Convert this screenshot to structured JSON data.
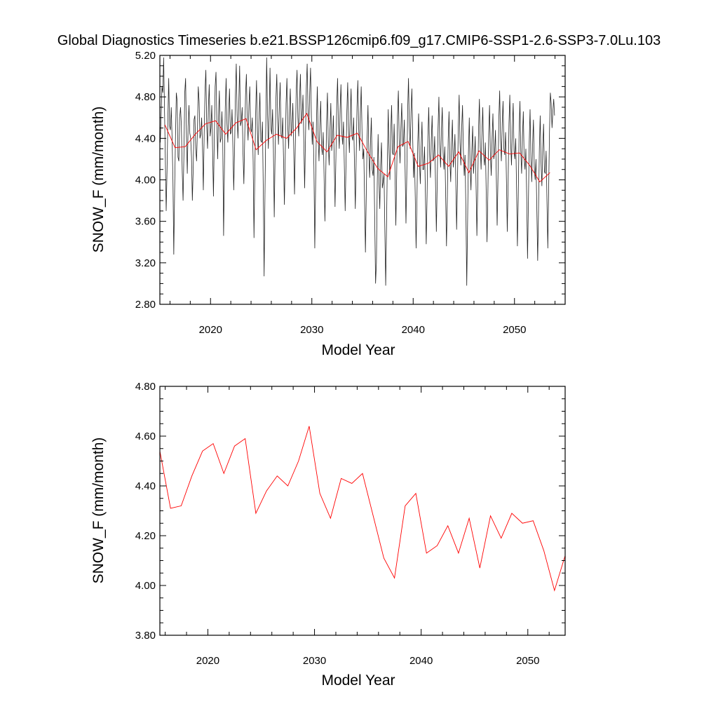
{
  "title": "Global Diagnostics Timeseries b.e21.BSSP126cmip6.f09_g17.CMIP6-SSP1-2.6-SSP3-7.0Lu.103",
  "chart_data": [
    {
      "type": "line",
      "xlabel": "Model Year",
      "ylabel": "SNOW_F (mm/month)",
      "xlim": [
        2015,
        2055
      ],
      "ylim": [
        2.8,
        5.2
      ],
      "x_ticks": [
        "2020",
        "2030",
        "2040",
        "2050"
      ],
      "y_ticks": [
        "2.80",
        "3.20",
        "3.60",
        "4.00",
        "4.40",
        "4.80",
        "5.20"
      ],
      "series": [
        {
          "color": "#222222",
          "x_start": 2015.04,
          "x_step": 0.08333,
          "values": [
            4.36,
            4.62,
            4.9,
            4.84,
            5.18,
            4.68,
            4.2,
            3.7,
            4.08,
            4.58,
            4.98,
            4.52,
            4.48,
            4.7,
            4.4,
            4.0,
            3.28,
            3.9,
            4.4,
            4.84,
            4.76,
            4.22,
            4.18,
            4.6,
            4.7,
            4.52,
            4.08,
            3.8,
            4.24,
            4.84,
            4.98,
            4.42,
            4.06,
            4.52,
            4.72,
            4.45,
            4.4,
            4.22,
            3.8,
            4.1,
            4.58,
            4.62,
            4.3,
            4.18,
            4.48,
            4.9,
            4.76,
            4.4,
            4.44,
            4.6,
            4.32,
            3.9,
            4.44,
            4.86,
            5.06,
            4.52,
            4.3,
            4.7,
            4.92,
            4.42,
            4.5,
            4.72,
            4.28,
            3.84,
            4.42,
            4.9,
            5.04,
            4.56,
            4.2,
            4.62,
            4.86,
            4.36,
            4.4,
            4.66,
            4.38,
            3.46,
            4.12,
            4.7,
            4.98,
            4.54,
            4.36,
            4.64,
            4.88,
            4.44,
            4.46,
            4.68,
            4.32,
            3.9,
            4.28,
            4.82,
            5.12,
            4.62,
            4.4,
            4.74,
            5.1,
            4.52,
            4.56,
            4.7,
            4.26,
            3.96,
            4.4,
            4.82,
            5.02,
            4.56,
            4.38,
            4.72,
            4.9,
            4.5,
            4.46,
            4.6,
            4.18,
            3.44,
            4.08,
            4.66,
            4.96,
            4.48,
            4.24,
            4.62,
            4.84,
            4.38,
            4.36,
            4.56,
            3.9,
            3.07,
            3.86,
            4.52,
            5.18,
            4.66,
            4.3,
            4.64,
            5.08,
            4.5,
            4.44,
            4.68,
            4.3,
            3.64,
            4.24,
            4.78,
            5.02,
            4.6,
            4.34,
            4.7,
            4.94,
            4.44,
            4.4,
            4.6,
            4.2,
            3.76,
            4.22,
            4.74,
            4.98,
            4.52,
            4.3,
            4.66,
            4.88,
            4.42,
            4.5,
            4.74,
            4.34,
            3.86,
            4.36,
            4.86,
            5.06,
            4.6,
            4.42,
            4.78,
            5.02,
            4.54,
            4.6,
            4.82,
            4.38,
            3.92,
            4.4,
            4.9,
            5.12,
            4.64,
            4.48,
            4.84,
            5.08,
            4.6,
            4.34,
            4.56,
            4.12,
            3.34,
            3.96,
            4.56,
            4.9,
            4.42,
            4.18,
            4.52,
            4.76,
            4.32,
            4.24,
            4.46,
            4.04,
            3.6,
            4.04,
            4.56,
            4.84,
            4.36,
            4.14,
            4.48,
            4.74,
            4.28,
            4.4,
            4.62,
            4.2,
            3.74,
            4.2,
            4.72,
            4.98,
            4.52,
            4.3,
            4.68,
            4.92,
            4.46,
            4.34,
            4.56,
            4.14,
            3.7,
            4.16,
            4.66,
            4.94,
            4.48,
            4.26,
            4.62,
            4.88,
            4.42,
            4.38,
            4.6,
            4.16,
            3.72,
            4.18,
            4.7,
            4.96,
            4.5,
            4.28,
            4.64,
            4.9,
            4.44,
            4.2,
            4.3,
            3.8,
            3.3,
            3.86,
            4.4,
            4.72,
            4.26,
            4.02,
            4.36,
            4.6,
            4.1,
            4.04,
            4.22,
            3.62,
            3.0,
            3.2,
            3.96,
            4.44,
            4.0,
            3.72,
            4.14,
            4.36,
            3.92,
            3.98,
            4.06,
            3.52,
            2.98,
            3.56,
            4.2,
            4.68,
            4.26,
            4.0,
            4.46,
            4.72,
            4.26,
            4.24,
            4.54,
            4.08,
            3.56,
            4.04,
            4.62,
            4.86,
            4.38,
            4.16,
            4.5,
            4.74,
            4.32,
            4.34,
            4.58,
            4.1,
            3.58,
            4.06,
            4.66,
            4.98,
            4.52,
            4.3,
            4.66,
            4.88,
            4.4,
            4.02,
            4.26,
            3.84,
            3.34,
            3.8,
            4.36,
            4.64,
            4.18,
            3.96,
            4.32,
            4.56,
            4.1,
            4.1,
            4.32,
            3.88,
            3.38,
            3.84,
            4.42,
            4.7,
            4.24,
            4.02,
            4.38,
            4.62,
            4.18,
            4.2,
            4.42,
            3.98,
            3.5,
            3.96,
            4.5,
            4.8,
            4.34,
            4.12,
            4.48,
            4.7,
            4.26,
            4.1,
            4.32,
            3.86,
            3.36,
            3.82,
            4.38,
            4.66,
            4.2,
            3.98,
            4.34,
            4.58,
            4.12,
            4.22,
            4.44,
            4.0,
            3.52,
            3.98,
            4.52,
            4.82,
            4.36,
            4.14,
            4.5,
            4.72,
            4.28,
            4.04,
            4.24,
            3.7,
            2.98,
            3.6,
            4.26,
            4.6,
            4.12,
            3.9,
            4.28,
            4.52,
            4.06,
            4.2,
            4.42,
            3.96,
            3.46,
            3.92,
            4.5,
            4.78,
            4.32,
            4.1,
            4.46,
            4.7,
            4.24,
            4.14,
            4.36,
            3.9,
            3.4,
            3.86,
            4.44,
            4.72,
            4.26,
            4.04,
            4.4,
            4.64,
            4.2,
            4.26,
            4.48,
            4.04,
            3.56,
            4.02,
            4.58,
            4.86,
            4.4,
            4.18,
            4.54,
            4.76,
            4.3,
            4.24,
            4.46,
            4.0,
            3.5,
            3.96,
            4.54,
            4.82,
            4.36,
            4.14,
            4.5,
            4.74,
            4.28,
            4.2,
            4.4,
            3.92,
            3.36,
            3.84,
            4.46,
            4.76,
            4.28,
            4.06,
            4.42,
            4.66,
            4.2,
            4.1,
            4.3,
            3.84,
            3.24,
            3.76,
            4.36,
            4.68,
            4.2,
            3.98,
            4.34,
            4.58,
            4.12,
            4.0,
            4.2,
            3.72,
            3.22,
            3.7,
            4.3,
            4.62,
            4.16,
            3.94,
            4.3,
            4.54,
            4.08,
            4.06,
            4.28,
            3.8,
            3.34,
            3.9,
            4.46,
            4.84,
            4.74,
            4.5,
            4.66,
            4.78,
            4.62
          ]
        },
        {
          "color": "#ff0000",
          "x": [
            2015.5,
            2016.5,
            2017.5,
            2018.5,
            2019.5,
            2020.5,
            2021.5,
            2022.5,
            2023.5,
            2024.5,
            2025.5,
            2026.5,
            2027.5,
            2028.5,
            2029.5,
            2030.5,
            2031.5,
            2032.5,
            2033.5,
            2034.5,
            2035.5,
            2036.5,
            2037.5,
            2038.5,
            2039.5,
            2040.5,
            2041.5,
            2042.5,
            2043.5,
            2044.5,
            2045.5,
            2046.5,
            2047.5,
            2048.5,
            2049.5,
            2050.5,
            2051.5,
            2052.5,
            2053.5
          ],
          "values": [
            4.53,
            4.31,
            4.32,
            4.44,
            4.54,
            4.57,
            4.44,
            4.55,
            4.59,
            4.29,
            4.38,
            4.44,
            4.4,
            4.5,
            4.64,
            4.37,
            4.27,
            4.43,
            4.41,
            4.45,
            4.27,
            4.11,
            4.03,
            4.32,
            4.37,
            4.13,
            4.16,
            4.24,
            4.13,
            4.27,
            4.07,
            4.28,
            4.19,
            4.29,
            4.25,
            4.26,
            4.14,
            3.98,
            4.07
          ]
        }
      ]
    },
    {
      "type": "line",
      "xlabel": "Model Year",
      "ylabel": "SNOW_F (mm/month)",
      "xlim": [
        2015.5,
        2053.5
      ],
      "ylim": [
        3.8,
        4.8
      ],
      "x_ticks": [
        "2020",
        "2030",
        "2040",
        "2050"
      ],
      "y_ticks": [
        "3.80",
        "4.00",
        "4.20",
        "4.40",
        "4.60",
        "4.80"
      ],
      "series": [
        {
          "color": "#ff0000",
          "x": [
            2015.5,
            2016.5,
            2017.5,
            2018.5,
            2019.5,
            2020.5,
            2021.5,
            2022.5,
            2023.5,
            2024.5,
            2025.5,
            2026.5,
            2027.5,
            2028.5,
            2029.5,
            2030.5,
            2031.5,
            2032.5,
            2033.5,
            2034.5,
            2035.5,
            2036.5,
            2037.5,
            2038.5,
            2039.5,
            2040.5,
            2041.5,
            2042.5,
            2043.5,
            2044.5,
            2045.5,
            2046.5,
            2047.5,
            2048.5,
            2049.5,
            2050.5,
            2051.5,
            2052.5,
            2053.5
          ],
          "values": [
            4.54,
            4.31,
            4.32,
            4.44,
            4.54,
            4.57,
            4.45,
            4.56,
            4.59,
            4.29,
            4.38,
            4.44,
            4.4,
            4.5,
            4.64,
            4.37,
            4.27,
            4.43,
            4.41,
            4.45,
            4.28,
            4.11,
            4.03,
            4.32,
            4.37,
            4.13,
            4.16,
            4.24,
            4.13,
            4.27,
            4.07,
            4.28,
            4.19,
            4.29,
            4.25,
            4.26,
            4.14,
            3.98,
            4.12
          ]
        }
      ]
    }
  ]
}
